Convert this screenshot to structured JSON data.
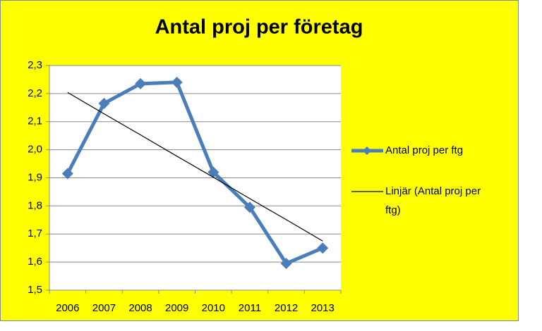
{
  "chart_data": {
    "type": "line",
    "title": "Antal proj per företag",
    "categories": [
      "2006",
      "2007",
      "2008",
      "2009",
      "2010",
      "2011",
      "2012",
      "2013"
    ],
    "series": [
      {
        "name": "Antal proj per ftg",
        "color": "#4a7ebb",
        "values": [
          1.915,
          2.165,
          2.235,
          2.24,
          1.92,
          1.795,
          1.595,
          1.65
        ]
      },
      {
        "name": "Linjär (Antal proj per ftg)",
        "color": "#000000",
        "values": [
          2.204,
          2.128,
          2.053,
          1.977,
          1.902,
          1.826,
          1.751,
          1.675
        ]
      }
    ],
    "ylim": [
      1.5,
      2.3
    ],
    "yticks": [
      {
        "value": 1.5,
        "label": "1,5"
      },
      {
        "value": 1.6,
        "label": "1,6"
      },
      {
        "value": 1.7,
        "label": "1,7"
      },
      {
        "value": 1.8,
        "label": "1,8"
      },
      {
        "value": 1.9,
        "label": "1,9"
      },
      {
        "value": 2.0,
        "label": "2,0"
      },
      {
        "value": 2.1,
        "label": "2,1"
      },
      {
        "value": 2.2,
        "label": "2,2"
      },
      {
        "value": 2.3,
        "label": "2,3"
      }
    ],
    "grid": true,
    "background": "#ffff00"
  }
}
